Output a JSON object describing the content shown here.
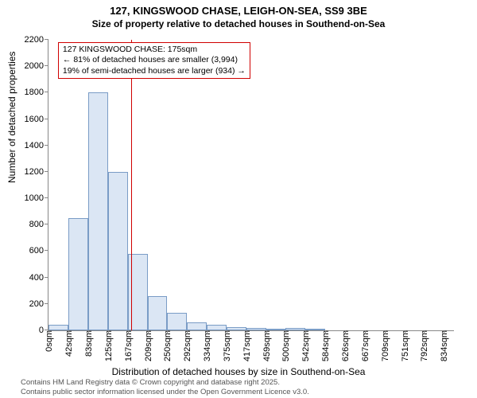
{
  "title": "127, KINGSWOOD CHASE, LEIGH-ON-SEA, SS9 3BE",
  "subtitle": "Size of property relative to detached houses in Southend-on-Sea",
  "ylabel": "Number of detached properties",
  "xlabel": "Distribution of detached houses by size in Southend-on-Sea",
  "footer_line1": "Contains HM Land Registry data © Crown copyright and database right 2025.",
  "footer_line2": "Contains public sector information licensed under the Open Government Licence v3.0.",
  "chart": {
    "type": "histogram",
    "x_min": 0,
    "x_max": 855,
    "y_min": 0,
    "y_max": 2200,
    "y_ticks": [
      0,
      200,
      400,
      600,
      800,
      1000,
      1200,
      1400,
      1600,
      1800,
      2000,
      2200
    ],
    "x_ticks": [
      0,
      42,
      83,
      125,
      167,
      209,
      250,
      292,
      334,
      375,
      417,
      459,
      500,
      542,
      584,
      626,
      667,
      709,
      751,
      792,
      834
    ],
    "x_tick_suffix": "sqm",
    "bars": [
      {
        "x": 0,
        "w": 42,
        "y": 40
      },
      {
        "x": 42,
        "w": 41,
        "y": 850
      },
      {
        "x": 83,
        "w": 42,
        "y": 1800
      },
      {
        "x": 125,
        "w": 42,
        "y": 1200
      },
      {
        "x": 167,
        "w": 42,
        "y": 580
      },
      {
        "x": 209,
        "w": 41,
        "y": 260
      },
      {
        "x": 250,
        "w": 42,
        "y": 130
      },
      {
        "x": 292,
        "w": 42,
        "y": 60
      },
      {
        "x": 334,
        "w": 41,
        "y": 40
      },
      {
        "x": 375,
        "w": 42,
        "y": 25
      },
      {
        "x": 417,
        "w": 42,
        "y": 20
      },
      {
        "x": 459,
        "w": 41,
        "y": 10
      },
      {
        "x": 500,
        "w": 42,
        "y": 20
      },
      {
        "x": 542,
        "w": 42,
        "y": 5
      },
      {
        "x": 584,
        "w": 42,
        "y": 0
      },
      {
        "x": 626,
        "w": 41,
        "y": 0
      },
      {
        "x": 667,
        "w": 42,
        "y": 0
      },
      {
        "x": 709,
        "w": 42,
        "y": 0
      },
      {
        "x": 751,
        "w": 41,
        "y": 0
      },
      {
        "x": 792,
        "w": 42,
        "y": 0
      }
    ],
    "bar_fill": "#dbe6f4",
    "bar_border": "#7a9cc6",
    "marker_x": 175,
    "marker_color": "#d00000",
    "background": "#ffffff",
    "axis_color": "#888888",
    "tick_fontsize": 11,
    "label_fontsize": 12,
    "title_fontsize": 13
  },
  "annotation": {
    "line1": "127 KINGSWOOD CHASE: 175sqm",
    "line2": "← 81% of detached houses are smaller (3,994)",
    "line3": "19% of semi-detached houses are larger (934) →",
    "border_color": "#d00000",
    "box_left_x": 20,
    "box_top_y": 2180
  }
}
